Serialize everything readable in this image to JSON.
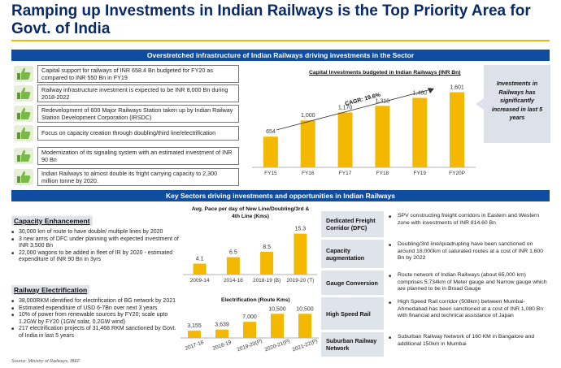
{
  "title": "Ramping up Investments in Indian Railways is the Top Priority Area for Govt. of India",
  "band_top": "Overstretched infrastructure of Indian Railways driving investments in the Sector",
  "band_bottom": "Key Sectors driving investments and opportunities in Indian Railways",
  "investment_points": [
    "Capital support for railways of INR 658.4 Bn budgeted for FY20 as compared to INR 550 Bn in FY19",
    "Railway infrastructure investment is expected to be INR 8,000 Bn during 2018-2022",
    "Redevelopment of 600 Major Railways Station taken up by Indian Railway Station Development Corporation (IRSDC)",
    "Focus on capacity creation through doubling/third line/electrification",
    "Modernization of its signaling system with an estimated investment of INR 90 Bn",
    "Indian Railways to almost double its fright carrying capacity to 2,300 million tonne by 2020."
  ],
  "callout": "Investments in Railways has significantly increased in last 5 years",
  "capacity": {
    "heading": "Capacity Enhancement",
    "bullets": [
      "30,000 km of route to have double/ multiple lines by 2020",
      "3 new arms of DFC under planning with expected investment of INR 3,500 Bn",
      "22,000 wagons to be added in fleet of IR by 2020 - estimated expenditure of INR 90 Bn in 3yrs"
    ]
  },
  "electrification": {
    "heading": "Railway Electrification",
    "bullets": [
      "38,000RKM identified for electrification of BG network by 2021",
      "Estimated expenditure of USD 6-7Bn over next 3 years",
      "10% of power from renewable sources by FY20; scale upto 1.2GW by FY20 (1GW solar, 0.2GW wind)",
      "217 electrification projects of 31,468 RKM sanctioned by Govt. of India in last 5 years"
    ]
  },
  "sectors": [
    {
      "name": "Dedicated Freight Corridor (DFC)",
      "desc": "SPV constructing freight corridors in Eastern and Western zone with investments of INR 814.60 Bn"
    },
    {
      "name": "Capacity augmentation",
      "desc": "Doubling/3rd line/quadrupling have been sanctioned on around 18,000km of saturated routes at a cost of INR 1,600 Bn by 2022"
    },
    {
      "name": "Gauge Conversion",
      "desc": "Route network of Indian Railways (about 65,000 km) comprises 5,734km of Meter gauge and Narrow gauge which are planned to be in Broad Gauge"
    },
    {
      "name": "High Speed Rail",
      "desc": "High Speed Rail corridor (508km) between Mumbai-Ahmedabad has been sanctioned at a cost of INR 1,080 Bn with financial and technical assistance of Japan"
    },
    {
      "name": "Suburban Railway Network",
      "desc": "Suburban Railway Network of 160 KM in Bangalore and additional 150km in Mumbai"
    }
  ],
  "source": "Source: Ministry of Railways, IBEF",
  "colors": {
    "navy": "#0a2a66",
    "band": "#0e4d9f",
    "gold": "#f5b800",
    "green": "#6fae3f"
  },
  "chart_data": [
    {
      "type": "bar",
      "title": "Capital Investments budgeted in Indian Railways (INR Bn)",
      "categories": [
        "FY15",
        "FY16",
        "FY17",
        "FY18",
        "FY19",
        "FY20P"
      ],
      "values": [
        654,
        1000,
        1170,
        1310,
        1480,
        1601
      ],
      "value_labels": [
        "654",
        "1,000",
        "1,170",
        "1,310",
        "1,480",
        "1,601"
      ],
      "annotation": "CAGR: 19.6%",
      "ylim": [
        0,
        1800
      ]
    },
    {
      "type": "bar",
      "title": "Avg. Pace per day of New Line/Doubling/3rd & 4th Line (Kms)",
      "categories": [
        "2009-14",
        "2014-18",
        "2018-19 (B)",
        "2019-20 (T)"
      ],
      "values": [
        4.1,
        6.5,
        8.5,
        15.3
      ],
      "value_labels": [
        "4.1",
        "6.5",
        "8.5",
        "15.3"
      ],
      "ylim": [
        0,
        17
      ]
    },
    {
      "type": "bar",
      "title": "Electrification (Route Kms)",
      "categories": [
        "2017-18",
        "2018-19",
        "2019-20(P)",
        "2020-21(P)",
        "2021-22(P)"
      ],
      "values": [
        3155,
        3639,
        7000,
        10500,
        10500
      ],
      "value_labels": [
        "3,155",
        "3,639",
        "7,000",
        "10,500",
        "10,500"
      ],
      "ylim": [
        0,
        12000
      ]
    }
  ]
}
